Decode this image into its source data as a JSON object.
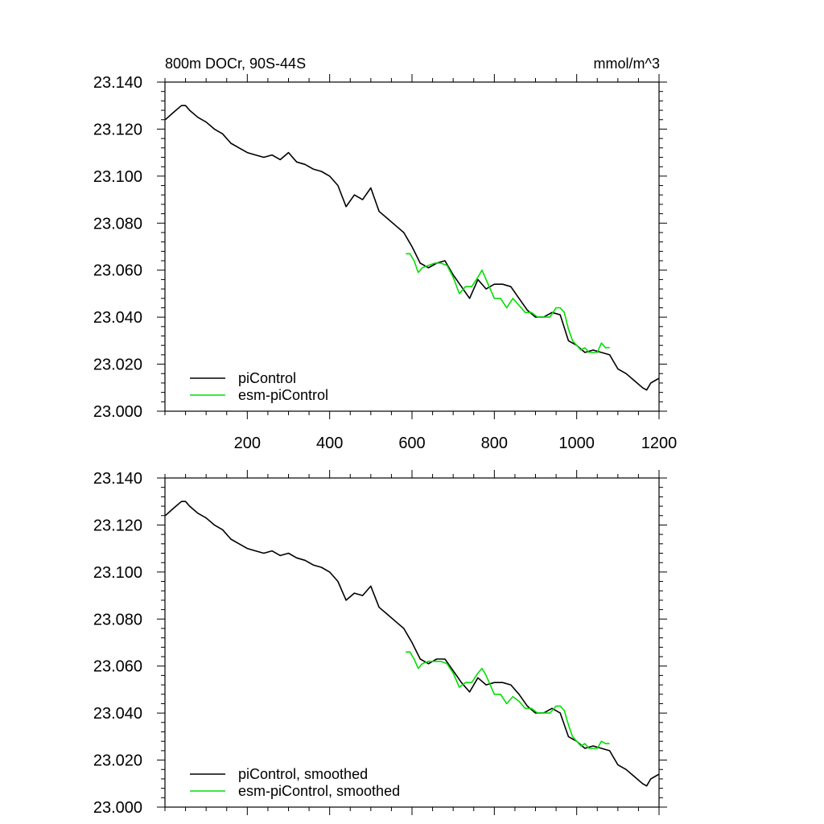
{
  "chart_data": [
    {
      "type": "line",
      "title": "800m DOCr, 90S-44S",
      "units": "mmol/m^3",
      "xlim": [
        0,
        1200
      ],
      "ylim": [
        23.0,
        23.14
      ],
      "x_ticks": [
        200,
        400,
        600,
        800,
        1000,
        1200
      ],
      "y_ticks": [
        23.0,
        23.02,
        23.04,
        23.06,
        23.08,
        23.1,
        23.12,
        23.14
      ],
      "y_tick_labels": [
        "23.000",
        "23.020",
        "23.040",
        "23.060",
        "23.080",
        "23.100",
        "23.120",
        "23.140"
      ],
      "x_tick_labels": [
        "200",
        "400",
        "600",
        "800",
        "1000",
        "1200"
      ],
      "legend_position": "bottom-left",
      "series": [
        {
          "name": "piControl",
          "color": "#000000",
          "x": [
            1,
            20,
            40,
            50,
            60,
            80,
            100,
            120,
            140,
            160,
            180,
            200,
            220,
            240,
            260,
            280,
            300,
            320,
            340,
            360,
            380,
            400,
            420,
            440,
            460,
            480,
            500,
            520,
            540,
            560,
            580,
            600,
            620,
            640,
            660,
            680,
            700,
            720,
            740,
            760,
            780,
            800,
            820,
            840,
            860,
            880,
            900,
            920,
            940,
            960,
            980,
            1000,
            1020,
            1040,
            1060,
            1080,
            1100,
            1120,
            1140,
            1160,
            1170,
            1180,
            1190,
            1200
          ],
          "values": [
            23.124,
            23.127,
            23.13,
            23.13,
            23.128,
            23.125,
            23.123,
            23.12,
            23.118,
            23.114,
            23.112,
            23.11,
            23.109,
            23.108,
            23.109,
            23.107,
            23.11,
            23.106,
            23.105,
            23.103,
            23.102,
            23.1,
            23.096,
            23.087,
            23.092,
            23.09,
            23.095,
            23.085,
            23.082,
            23.079,
            23.076,
            23.07,
            23.063,
            23.061,
            23.063,
            23.064,
            23.058,
            23.053,
            23.048,
            23.056,
            23.052,
            23.054,
            23.054,
            23.053,
            23.048,
            23.043,
            23.04,
            23.04,
            23.042,
            23.041,
            23.03,
            23.028,
            23.025,
            23.026,
            23.025,
            23.024,
            23.018,
            23.016,
            23.013,
            23.01,
            23.009,
            23.012,
            23.013,
            23.014
          ]
        },
        {
          "name": "esm-piControl",
          "color": "#00e000",
          "x": [
            585,
            595,
            605,
            615,
            625,
            640,
            655,
            670,
            685,
            700,
            715,
            730,
            745,
            760,
            770,
            780,
            790,
            800,
            815,
            830,
            845,
            860,
            875,
            890,
            905,
            920,
            935,
            950,
            960,
            970,
            980,
            990,
            1000,
            1010,
            1020,
            1030,
            1040,
            1050,
            1060,
            1070,
            1080
          ],
          "values": [
            23.067,
            23.067,
            23.064,
            23.059,
            23.061,
            23.062,
            23.063,
            23.063,
            23.062,
            23.057,
            23.05,
            23.053,
            23.053,
            23.057,
            23.06,
            23.056,
            23.052,
            23.048,
            23.048,
            23.044,
            23.048,
            23.045,
            23.042,
            23.042,
            23.04,
            23.04,
            23.04,
            23.044,
            23.044,
            23.042,
            23.035,
            23.03,
            23.028,
            23.026,
            23.027,
            23.025,
            23.025,
            23.025,
            23.029,
            23.027,
            23.027
          ]
        }
      ],
      "legend": [
        "piControl",
        "esm-piControl"
      ]
    },
    {
      "type": "line",
      "title": "",
      "xlim": [
        0,
        1200
      ],
      "ylim": [
        23.0,
        23.14
      ],
      "y_ticks": [
        23.0,
        23.02,
        23.04,
        23.06,
        23.08,
        23.1,
        23.12,
        23.14
      ],
      "y_tick_labels": [
        "23.000",
        "23.020",
        "23.040",
        "23.060",
        "23.080",
        "23.100",
        "23.120",
        "23.140"
      ],
      "legend_position": "bottom-left",
      "series": [
        {
          "name": "piControl, smoothed",
          "color": "#000000",
          "x": [
            1,
            20,
            40,
            50,
            60,
            80,
            100,
            120,
            140,
            160,
            180,
            200,
            220,
            240,
            260,
            280,
            300,
            320,
            340,
            360,
            380,
            400,
            420,
            440,
            460,
            480,
            500,
            520,
            540,
            560,
            580,
            600,
            620,
            640,
            660,
            680,
            700,
            720,
            740,
            760,
            780,
            800,
            820,
            840,
            860,
            880,
            900,
            920,
            940,
            960,
            980,
            1000,
            1020,
            1040,
            1060,
            1080,
            1100,
            1120,
            1140,
            1160,
            1170,
            1180,
            1190,
            1200
          ],
          "values": [
            23.124,
            23.127,
            23.13,
            23.13,
            23.128,
            23.125,
            23.123,
            23.12,
            23.118,
            23.114,
            23.112,
            23.11,
            23.109,
            23.108,
            23.109,
            23.107,
            23.108,
            23.106,
            23.105,
            23.103,
            23.102,
            23.1,
            23.096,
            23.088,
            23.091,
            23.09,
            23.094,
            23.085,
            23.082,
            23.079,
            23.076,
            23.07,
            23.063,
            23.061,
            23.063,
            23.063,
            23.058,
            23.053,
            23.049,
            23.055,
            23.052,
            23.053,
            23.053,
            23.052,
            23.048,
            23.043,
            23.04,
            23.04,
            23.042,
            23.04,
            23.03,
            23.028,
            23.025,
            23.026,
            23.025,
            23.024,
            23.018,
            23.016,
            23.013,
            23.01,
            23.009,
            23.012,
            23.013,
            23.014
          ]
        },
        {
          "name": "esm-piControl, smoothed",
          "color": "#00e000",
          "x": [
            585,
            595,
            605,
            615,
            625,
            640,
            655,
            670,
            685,
            700,
            715,
            730,
            745,
            760,
            770,
            780,
            790,
            800,
            815,
            830,
            845,
            860,
            875,
            890,
            905,
            920,
            935,
            950,
            960,
            970,
            980,
            990,
            1000,
            1010,
            1020,
            1030,
            1040,
            1050,
            1060,
            1070,
            1080
          ],
          "values": [
            23.066,
            23.066,
            23.063,
            23.059,
            23.061,
            23.062,
            23.062,
            23.062,
            23.061,
            23.057,
            23.051,
            23.053,
            23.053,
            23.057,
            23.059,
            23.056,
            23.052,
            23.048,
            23.048,
            23.044,
            23.047,
            23.045,
            23.042,
            23.042,
            23.04,
            23.04,
            23.04,
            23.043,
            23.043,
            23.041,
            23.035,
            23.03,
            23.028,
            23.026,
            23.027,
            23.025,
            23.025,
            23.025,
            23.028,
            23.027,
            23.027
          ]
        }
      ],
      "legend": [
        "piControl, smoothed",
        "esm-piControl, smoothed"
      ]
    }
  ]
}
